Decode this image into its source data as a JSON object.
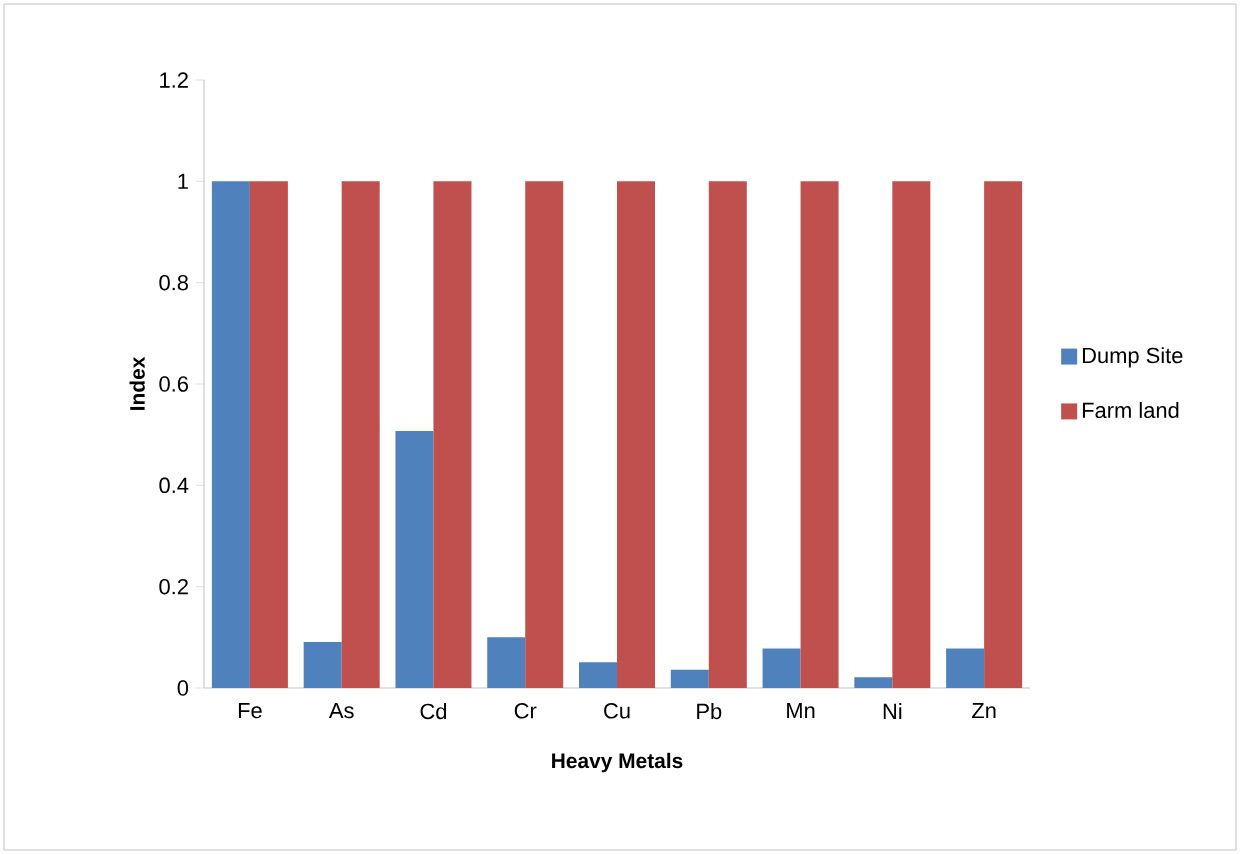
{
  "chart_data": {
    "type": "bar",
    "xlabel": "Heavy Metals",
    "ylabel": "Index",
    "categories": [
      "Fe",
      "As",
      "Cd",
      "Cr",
      "Cu",
      "Pb",
      "Mn",
      "Ni",
      "Zn"
    ],
    "series": [
      {
        "name": "Dump Site",
        "color": "#4f81bd",
        "values": [
          1,
          0.091,
          0.507,
          0.1,
          0.051,
          0.036,
          0.078,
          0.021,
          0.078
        ]
      },
      {
        "name": "Farm land",
        "color": "#c0504d",
        "values": [
          1,
          1,
          1,
          1,
          1,
          1,
          1,
          1,
          1
        ]
      }
    ],
    "ylim": [
      0,
      1.2
    ],
    "yticks": [
      0,
      0.2,
      0.4,
      0.6,
      0.8,
      1,
      1.2
    ],
    "grid": false,
    "legend": "right"
  }
}
